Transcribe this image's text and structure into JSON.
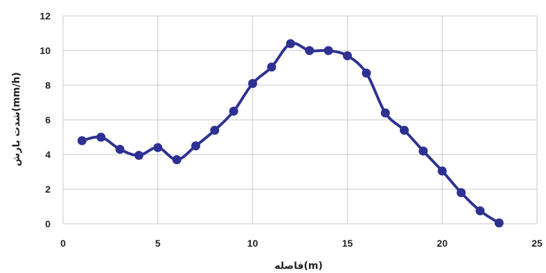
{
  "chart_data": {
    "type": "line",
    "xlabel": "فاصله(m)",
    "ylabel": "شدت بارش(mm/h)",
    "xlim": [
      0,
      25
    ],
    "ylim": [
      0,
      12
    ],
    "xticks": [
      0,
      5,
      10,
      15,
      20,
      25
    ],
    "yticks": [
      0,
      2,
      4,
      6,
      8,
      10,
      12
    ],
    "grid": true,
    "legend": "none",
    "line_color": "#2e3192",
    "marker": "circle",
    "x": [
      1,
      2,
      3,
      4,
      5,
      6,
      7,
      8,
      9,
      10,
      11,
      12,
      13,
      14,
      15,
      16,
      17,
      18,
      19,
      20,
      21,
      22,
      23
    ],
    "series": [
      {
        "values": [
          4.8,
          5.0,
          4.3,
          3.95,
          4.4,
          3.7,
          4.5,
          5.4,
          6.5,
          8.1,
          9.05,
          10.4,
          10.0,
          10.0,
          9.7,
          8.7,
          6.4,
          5.4,
          4.2,
          3.05,
          1.8,
          0.75,
          0.05
        ]
      }
    ]
  }
}
